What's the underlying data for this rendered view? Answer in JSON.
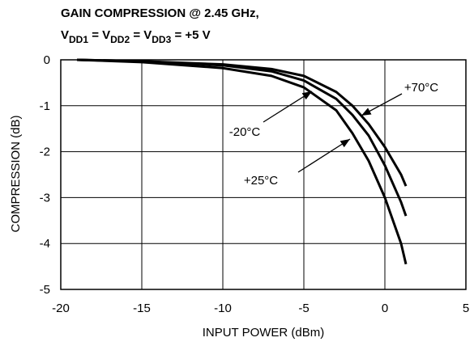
{
  "chart_data": {
    "type": "line",
    "title": "GAIN COMPRESSION @ 2.45 GHz,",
    "subtitle_parts": [
      "V",
      "DD1",
      " = V",
      "DD2",
      " = V",
      "DD3",
      " = +5 V"
    ],
    "x_label": "INPUT POWER (dBm)",
    "y_label": "COMPRESSION (dB)",
    "x": [
      -19,
      -15,
      -10,
      -7,
      -5,
      -3,
      -2,
      -1,
      0,
      1,
      1.3
    ],
    "series": [
      {
        "name": "+70°C",
        "color": "#000000",
        "values": [
          0,
          -0.03,
          -0.1,
          -0.2,
          -0.35,
          -0.7,
          -1.0,
          -1.4,
          -1.9,
          -2.5,
          -2.75
        ]
      },
      {
        "name": "-20°C",
        "color": "#000000",
        "values": [
          0,
          -0.03,
          -0.12,
          -0.25,
          -0.45,
          -0.85,
          -1.2,
          -1.65,
          -2.3,
          -3.1,
          -3.4
        ]
      },
      {
        "name": "+25°C",
        "color": "#000000",
        "values": [
          0,
          -0.05,
          -0.18,
          -0.35,
          -0.6,
          -1.1,
          -1.6,
          -2.2,
          -3.0,
          -4.0,
          -4.45
        ]
      }
    ],
    "xlim": [
      -20,
      5
    ],
    "xticks": [
      -20,
      -15,
      -10,
      -5,
      0,
      5
    ],
    "ylim": [
      -5,
      0
    ],
    "yticks": [
      0,
      -1,
      -2,
      -3,
      -4,
      -5
    ],
    "grid": true
  }
}
